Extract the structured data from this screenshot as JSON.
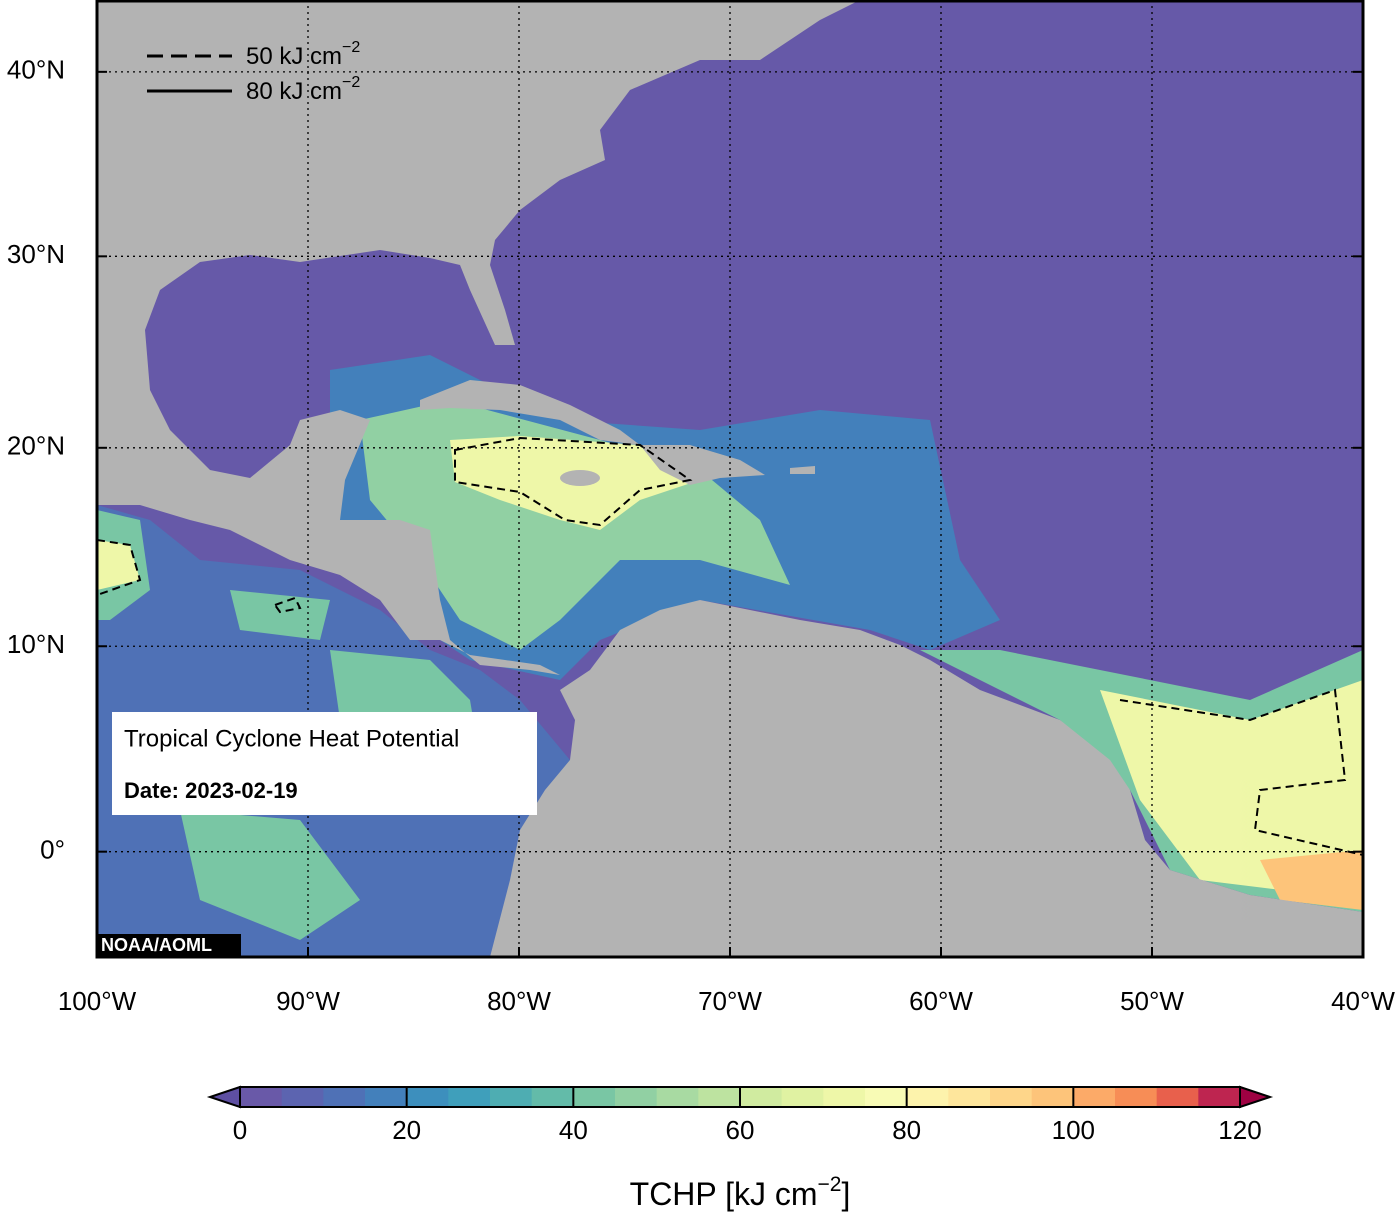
{
  "map": {
    "xlim": [
      -100,
      -40
    ],
    "ylim": [
      -5,
      44
    ],
    "xticks": [
      {
        "value": -100,
        "label": "100°W"
      },
      {
        "value": -90,
        "label": "90°W"
      },
      {
        "value": -80,
        "label": "80°W"
      },
      {
        "value": -70,
        "label": "70°W"
      },
      {
        "value": -60,
        "label": "60°W"
      },
      {
        "value": -50,
        "label": "50°W"
      },
      {
        "value": -40,
        "label": "40°W"
      }
    ],
    "yticks": [
      {
        "value": 0,
        "label": "0°"
      },
      {
        "value": 10,
        "label": "10°N"
      },
      {
        "value": 20,
        "label": "20°N"
      },
      {
        "value": 30,
        "label": "30°N"
      },
      {
        "value": 40,
        "label": "40°N"
      }
    ],
    "grid": true,
    "credit": "NOAA/AOML"
  },
  "legend": [
    {
      "text": "50 kJ cm",
      "sup": "−2",
      "style": "dashed"
    },
    {
      "text": "80 kJ cm",
      "sup": "−2",
      "style": "solid"
    }
  ],
  "info": {
    "title": "Tropical Cyclone Heat Potential",
    "date": "Date: 2023-02-19"
  },
  "colorbar": {
    "label": "TCHP [kJ cm",
    "label_sup": "−2",
    "label_end": "]",
    "lim": [
      0,
      120
    ],
    "ticks": [
      0,
      20,
      40,
      60,
      80,
      100,
      120
    ],
    "under": "#5e4fa2",
    "over": "#9e0142",
    "colors": [
      "#6959a8",
      "#5c64b0",
      "#4f71b6",
      "#4380bb",
      "#3d8fbd",
      "#3f9fbb",
      "#4eadb2",
      "#63bba9",
      "#79c6a4",
      "#91d0a3",
      "#a8daa2",
      "#bde3a0",
      "#d0eba0",
      "#e0f2a2",
      "#eef7a8",
      "#f8fbb5",
      "#fdf3ac",
      "#fee69c",
      "#fed68a",
      "#fdc47a",
      "#fcaa68",
      "#f78d56",
      "#e8604c",
      "#be2550"
    ]
  }
}
